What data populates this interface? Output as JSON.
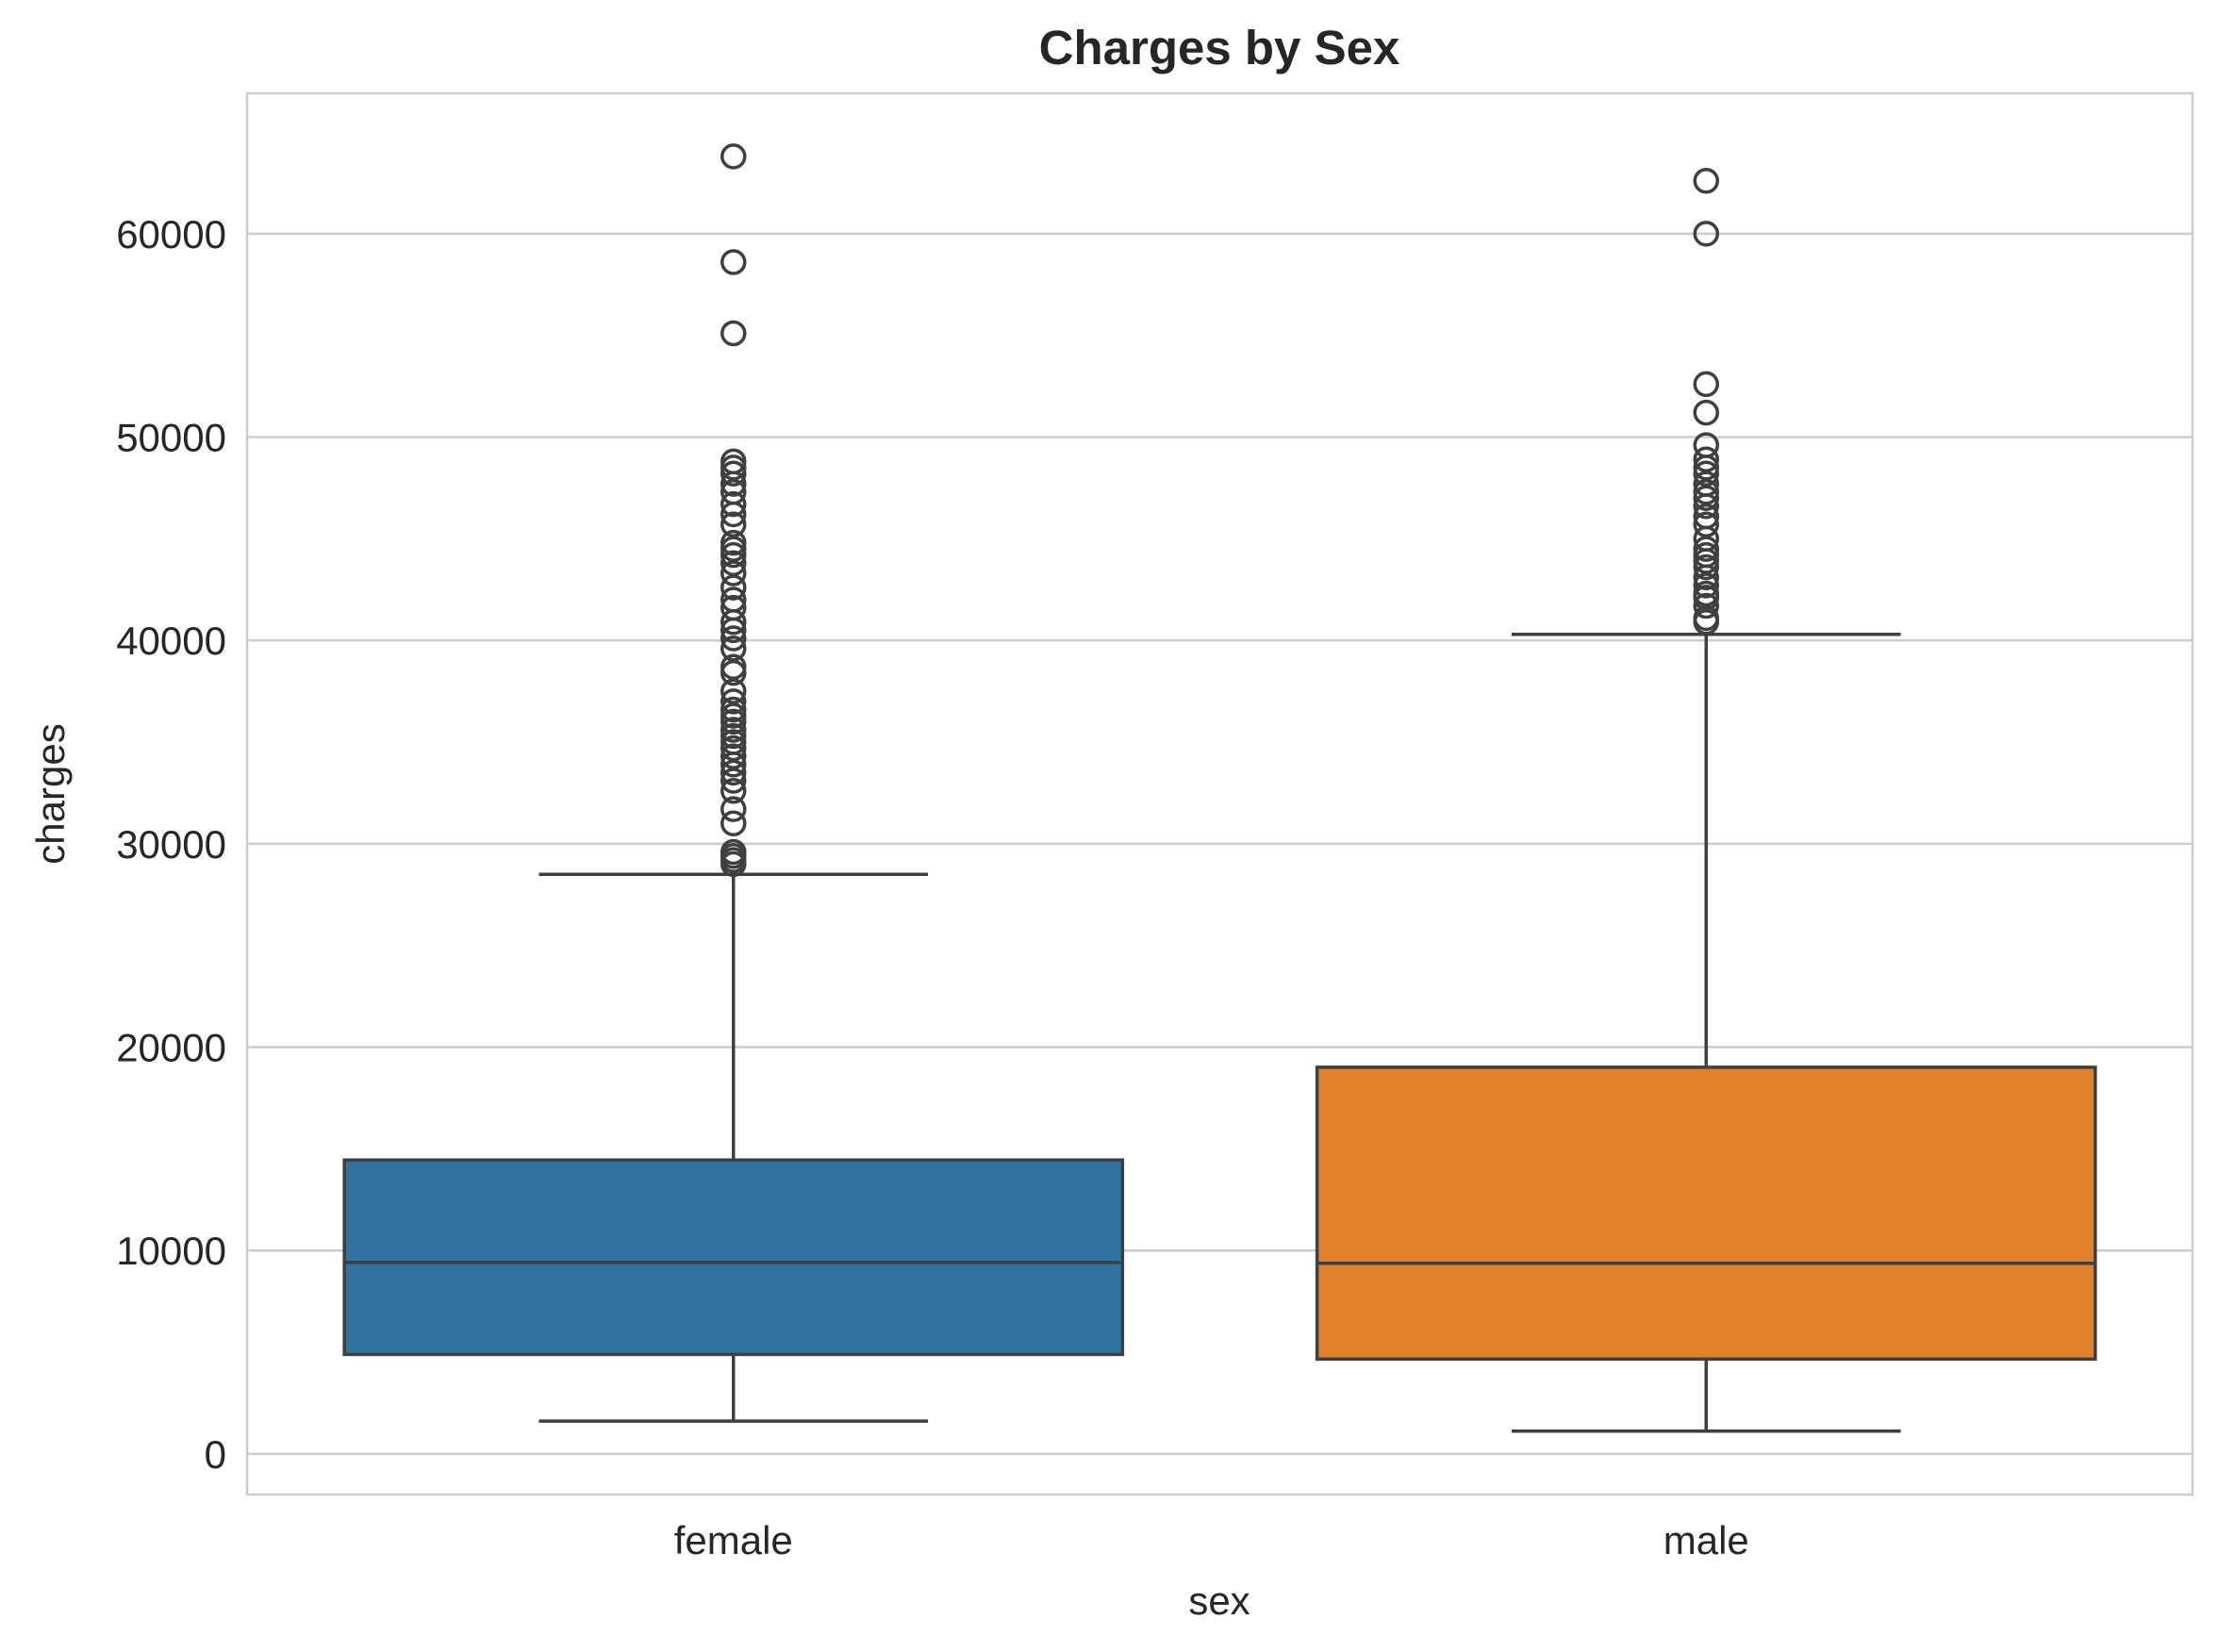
{
  "chart_data": {
    "type": "box",
    "title": "Charges by Sex",
    "xlabel": "sex",
    "ylabel": "charges",
    "categories": [
      "female",
      "male"
    ],
    "ylim": [
      -2000,
      66900
    ],
    "yticks": [
      0,
      10000,
      20000,
      30000,
      40000,
      50000,
      60000
    ],
    "ytick_labels": [
      "0",
      "10000",
      "20000",
      "30000",
      "40000",
      "50000",
      "60000"
    ],
    "grid": "horizontal",
    "boxes": [
      {
        "category": "female",
        "color": "#3274a1",
        "whisker_low": 1610,
        "q1": 4890,
        "median": 9410,
        "q3": 14450,
        "whisker_high": 28500,
        "outliers": [
          29000,
          29200,
          29400,
          29600,
          31000,
          31700,
          32600,
          33100,
          33500,
          33900,
          34300,
          34700,
          35000,
          35300,
          35600,
          36000,
          36300,
          36600,
          37000,
          37500,
          38400,
          38700,
          39600,
          40100,
          40500,
          40900,
          41600,
          42000,
          42600,
          43300,
          43800,
          44200,
          44500,
          44800,
          45700,
          46200,
          46700,
          47300,
          47700,
          48200,
          48500,
          48800,
          55100,
          58600,
          63800
        ]
      },
      {
        "category": "male",
        "color": "#e1812c",
        "whisker_low": 1120,
        "q1": 4660,
        "median": 9370,
        "q3": 19010,
        "whisker_high": 40300,
        "outliers": [
          40900,
          41100,
          41700,
          42100,
          42300,
          42700,
          43100,
          43600,
          43900,
          44200,
          44500,
          45000,
          45700,
          46100,
          46600,
          47000,
          47300,
          47700,
          48200,
          48500,
          48900,
          49600,
          51200,
          52600,
          60000,
          62600
        ]
      }
    ]
  }
}
